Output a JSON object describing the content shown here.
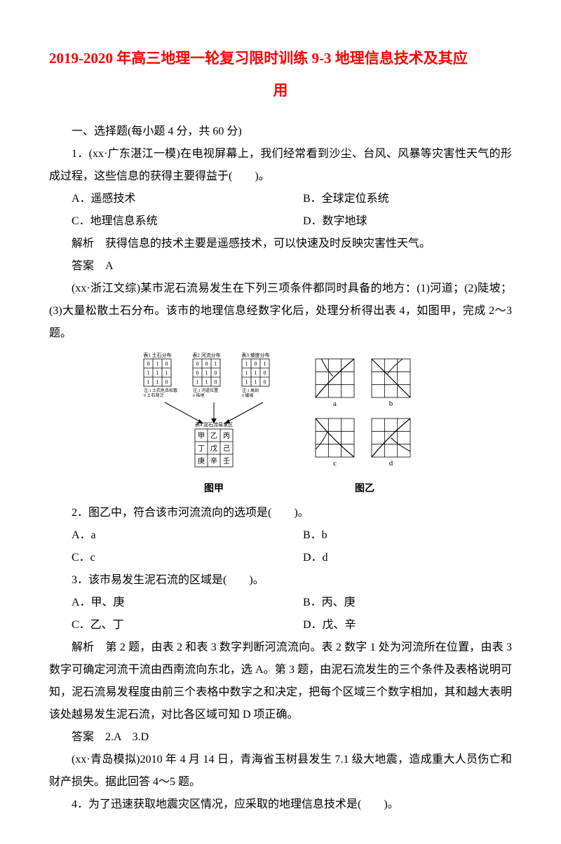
{
  "title": {
    "line1": "2019-2020 年高三地理一轮复习限时训练 9-3 地理信息技术及其应",
    "line2": "用"
  },
  "section1": "一、选择题(每小题 4 分，共 60 分)",
  "q1": {
    "stem": "1．(xx·广东湛江一模)在电视屏幕上，我们经常看到沙尘、台风、风暴等灾害性天气的形成过程，这些信息的获得主要得益于(　　)。",
    "a": "A．遥感技术",
    "b": "B．全球定位系统",
    "c": "C．地理信息系统",
    "d": "D．数字地球",
    "analysis": "解析　获得信息的技术主要是遥感技术，可以快速及时反映灾害性天气。",
    "answer": "答案　A"
  },
  "intro23": "(xx·浙江文综)某市泥石流易发生在下列三项条件都同时具备的地方：(1)河道；(2)陡坡；(3)大量松散土石分布。该市的地理信息经数字化后，处理分析得出表 4，如图甲，完成 2～3 题。",
  "fig": {
    "caption_a": "图甲",
    "caption_b": "图乙",
    "table1_title": "表1 土石分布",
    "table2_title": "表2 河流分布",
    "table3_title": "表3 坡度分布",
    "table4_title": "表4 泥石流易发区",
    "note1a": "注:1 土石危且松散",
    "note1b": "0 土石背泛",
    "note2a": "注:1 河道位置",
    "note2b": "0 陆地",
    "note3a": "注:1 高刻",
    "note3b": "0 缓坡",
    "t1": [
      [
        "0",
        "1",
        "0"
      ],
      [
        "1",
        "1",
        "1"
      ],
      [
        "1",
        "1",
        "0"
      ]
    ],
    "t2": [
      [
        "0",
        "0",
        "1"
      ],
      [
        "0",
        "1",
        "0"
      ],
      [
        "1",
        "1",
        "0"
      ]
    ],
    "t3": [
      [
        "1",
        "0",
        "1"
      ],
      [
        "1",
        "1",
        "0"
      ],
      [
        "1",
        "1",
        "0"
      ]
    ],
    "t4": [
      [
        "甲",
        "乙",
        "丙"
      ],
      [
        "丁",
        "戊",
        "己"
      ],
      [
        "庚",
        "辛",
        "壬"
      ]
    ],
    "labels": {
      "a": "a",
      "b": "b",
      "c": "c",
      "d": "d"
    }
  },
  "q2": {
    "stem": "2．图乙中，符合该市河流流向的选项是(　　)。",
    "a": "A．a",
    "b": "B．b",
    "c": "C．c",
    "d": "D．d"
  },
  "q3": {
    "stem": "3．该市易发生泥石流的区域是(　　)。",
    "a": "A．甲、庚",
    "b": "B．丙、庚",
    "c": "C．乙、丁",
    "d": "D．戊、辛",
    "analysis": "解析　第 2 题，由表 2 和表 3 数字判断河流流向。表 2 数字 1 处为河流所在位置，由表 3 数字可确定河流干流由西南流向东北，选 A。第 3 题，由泥石流发生的三个条件及表格说明可知，泥石流易发程度由前三个表格中数字之和决定，把每个区域三个数字相加，其和越大表明该处越易发生泥石流，对比各区域可知 D 项正确。",
    "answer": "答案　2.A　3.D"
  },
  "intro45": "(xx·青岛模拟)2010 年 4 月 14 日，青海省玉树县发生 7.1 级大地震，造成重大人员伤亡和财产损失。据此回答 4～5 题。",
  "q4": {
    "stem": "4．为了迅速获取地震灾区情况，应采取的地理信息技术是(　　)。"
  },
  "colors": {
    "title": "#ff0000",
    "text": "#000000",
    "bg": "#ffffff",
    "line": "#000000"
  }
}
